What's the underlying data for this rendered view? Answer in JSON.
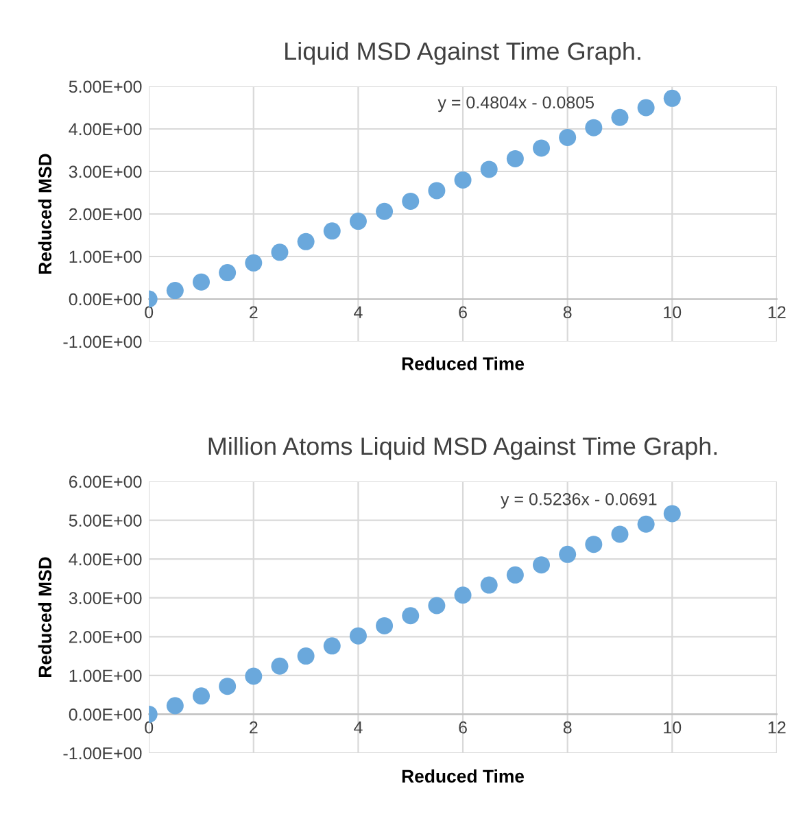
{
  "chart_data": [
    {
      "type": "scatter",
      "title": "Liquid MSD Against Time Graph.",
      "xlabel": "Reduced Time",
      "ylabel": "Reduced MSD",
      "annotations": [
        "y = 0.4804x - 0.0805"
      ],
      "series": [
        {
          "color": "#6aa8dc",
          "x": [
            0,
            0.5,
            1,
            1.5,
            2,
            2.5,
            3,
            3.5,
            4,
            4.5,
            5,
            5.5,
            6,
            6.5,
            7,
            7.5,
            8,
            8.5,
            9,
            9.5,
            10
          ],
          "values": [
            0,
            0.2,
            0.4,
            0.62,
            0.85,
            1.1,
            1.35,
            1.6,
            1.83,
            2.06,
            2.3,
            2.55,
            2.8,
            3.05,
            3.3,
            3.55,
            3.8,
            4.03,
            4.27,
            4.5,
            4.72
          ]
        }
      ],
      "xlim": [
        0,
        12
      ],
      "xticks": [
        0,
        2,
        4,
        6,
        8,
        10,
        12
      ],
      "ylim": [
        -1,
        5
      ],
      "yticks": [
        {
          "value": -1,
          "label": "-1.00E+00"
        },
        {
          "value": 0,
          "label": "0.00E+00"
        },
        {
          "value": 1,
          "label": "1.00E+00"
        },
        {
          "value": 2,
          "label": "2.00E+00"
        },
        {
          "value": 3,
          "label": "3.00E+00"
        },
        {
          "value": 4,
          "label": "4.00E+00"
        },
        {
          "value": 5,
          "label": "5.00E+00"
        }
      ],
      "grid": true,
      "marker": "circle"
    },
    {
      "type": "scatter",
      "title": "Million Atoms Liquid MSD Against Time Graph.",
      "xlabel": "Reduced Time",
      "ylabel": "Reduced MSD",
      "annotations": [
        "y = 0.5236x - 0.0691"
      ],
      "series": [
        {
          "color": "#6aa8dc",
          "x": [
            0,
            0.5,
            1,
            1.5,
            2,
            2.5,
            3,
            3.5,
            4,
            4.5,
            5,
            5.5,
            6,
            6.5,
            7,
            7.5,
            8,
            8.5,
            9,
            9.5,
            10
          ],
          "values": [
            0,
            0.22,
            0.47,
            0.72,
            0.98,
            1.24,
            1.5,
            1.76,
            2.02,
            2.28,
            2.54,
            2.8,
            3.07,
            3.33,
            3.59,
            3.85,
            4.12,
            4.38,
            4.64,
            4.9,
            5.17
          ]
        }
      ],
      "xlim": [
        0,
        12
      ],
      "xticks": [
        0,
        2,
        4,
        6,
        8,
        10,
        12
      ],
      "ylim": [
        -1,
        6
      ],
      "yticks": [
        {
          "value": -1,
          "label": "-1.00E+00"
        },
        {
          "value": 0,
          "label": "0.00E+00"
        },
        {
          "value": 1,
          "label": "1.00E+00"
        },
        {
          "value": 2,
          "label": "2.00E+00"
        },
        {
          "value": 3,
          "label": "3.00E+00"
        },
        {
          "value": 4,
          "label": "4.00E+00"
        },
        {
          "value": 5,
          "label": "5.00E+00"
        },
        {
          "value": 6,
          "label": "6.00E+00"
        }
      ],
      "grid": true,
      "marker": "circle"
    }
  ]
}
